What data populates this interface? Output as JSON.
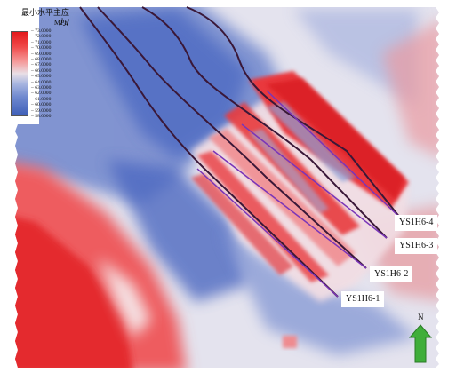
{
  "map": {
    "legend": {
      "title": "最小水平主应力/",
      "unit": "MPa",
      "ticks": [
        "73.0000",
        "72.0000",
        "71.0000",
        "70.0000",
        "69.0000",
        "68.0000",
        "67.0000",
        "66.0000",
        "65.0000",
        "64.0000",
        "63.0000",
        "62.0000",
        "61.0000",
        "60.0000",
        "59.0000",
        "58.0000"
      ]
    },
    "wells": [
      {
        "name": "YS1H6-4",
        "color": "#7a35b8"
      },
      {
        "name": "YS1H6-3",
        "color": "#7a35b8"
      },
      {
        "name": "YS1H6-2",
        "color": "#7a35b8"
      },
      {
        "name": "YS1H6-1",
        "color": "#7a35b8"
      }
    ],
    "north": {
      "label": "N",
      "color": "#3fae3a"
    },
    "colors": {
      "high": "#e31a1c",
      "mid": "#f0e8ee",
      "low": "#3e5fb8"
    }
  }
}
